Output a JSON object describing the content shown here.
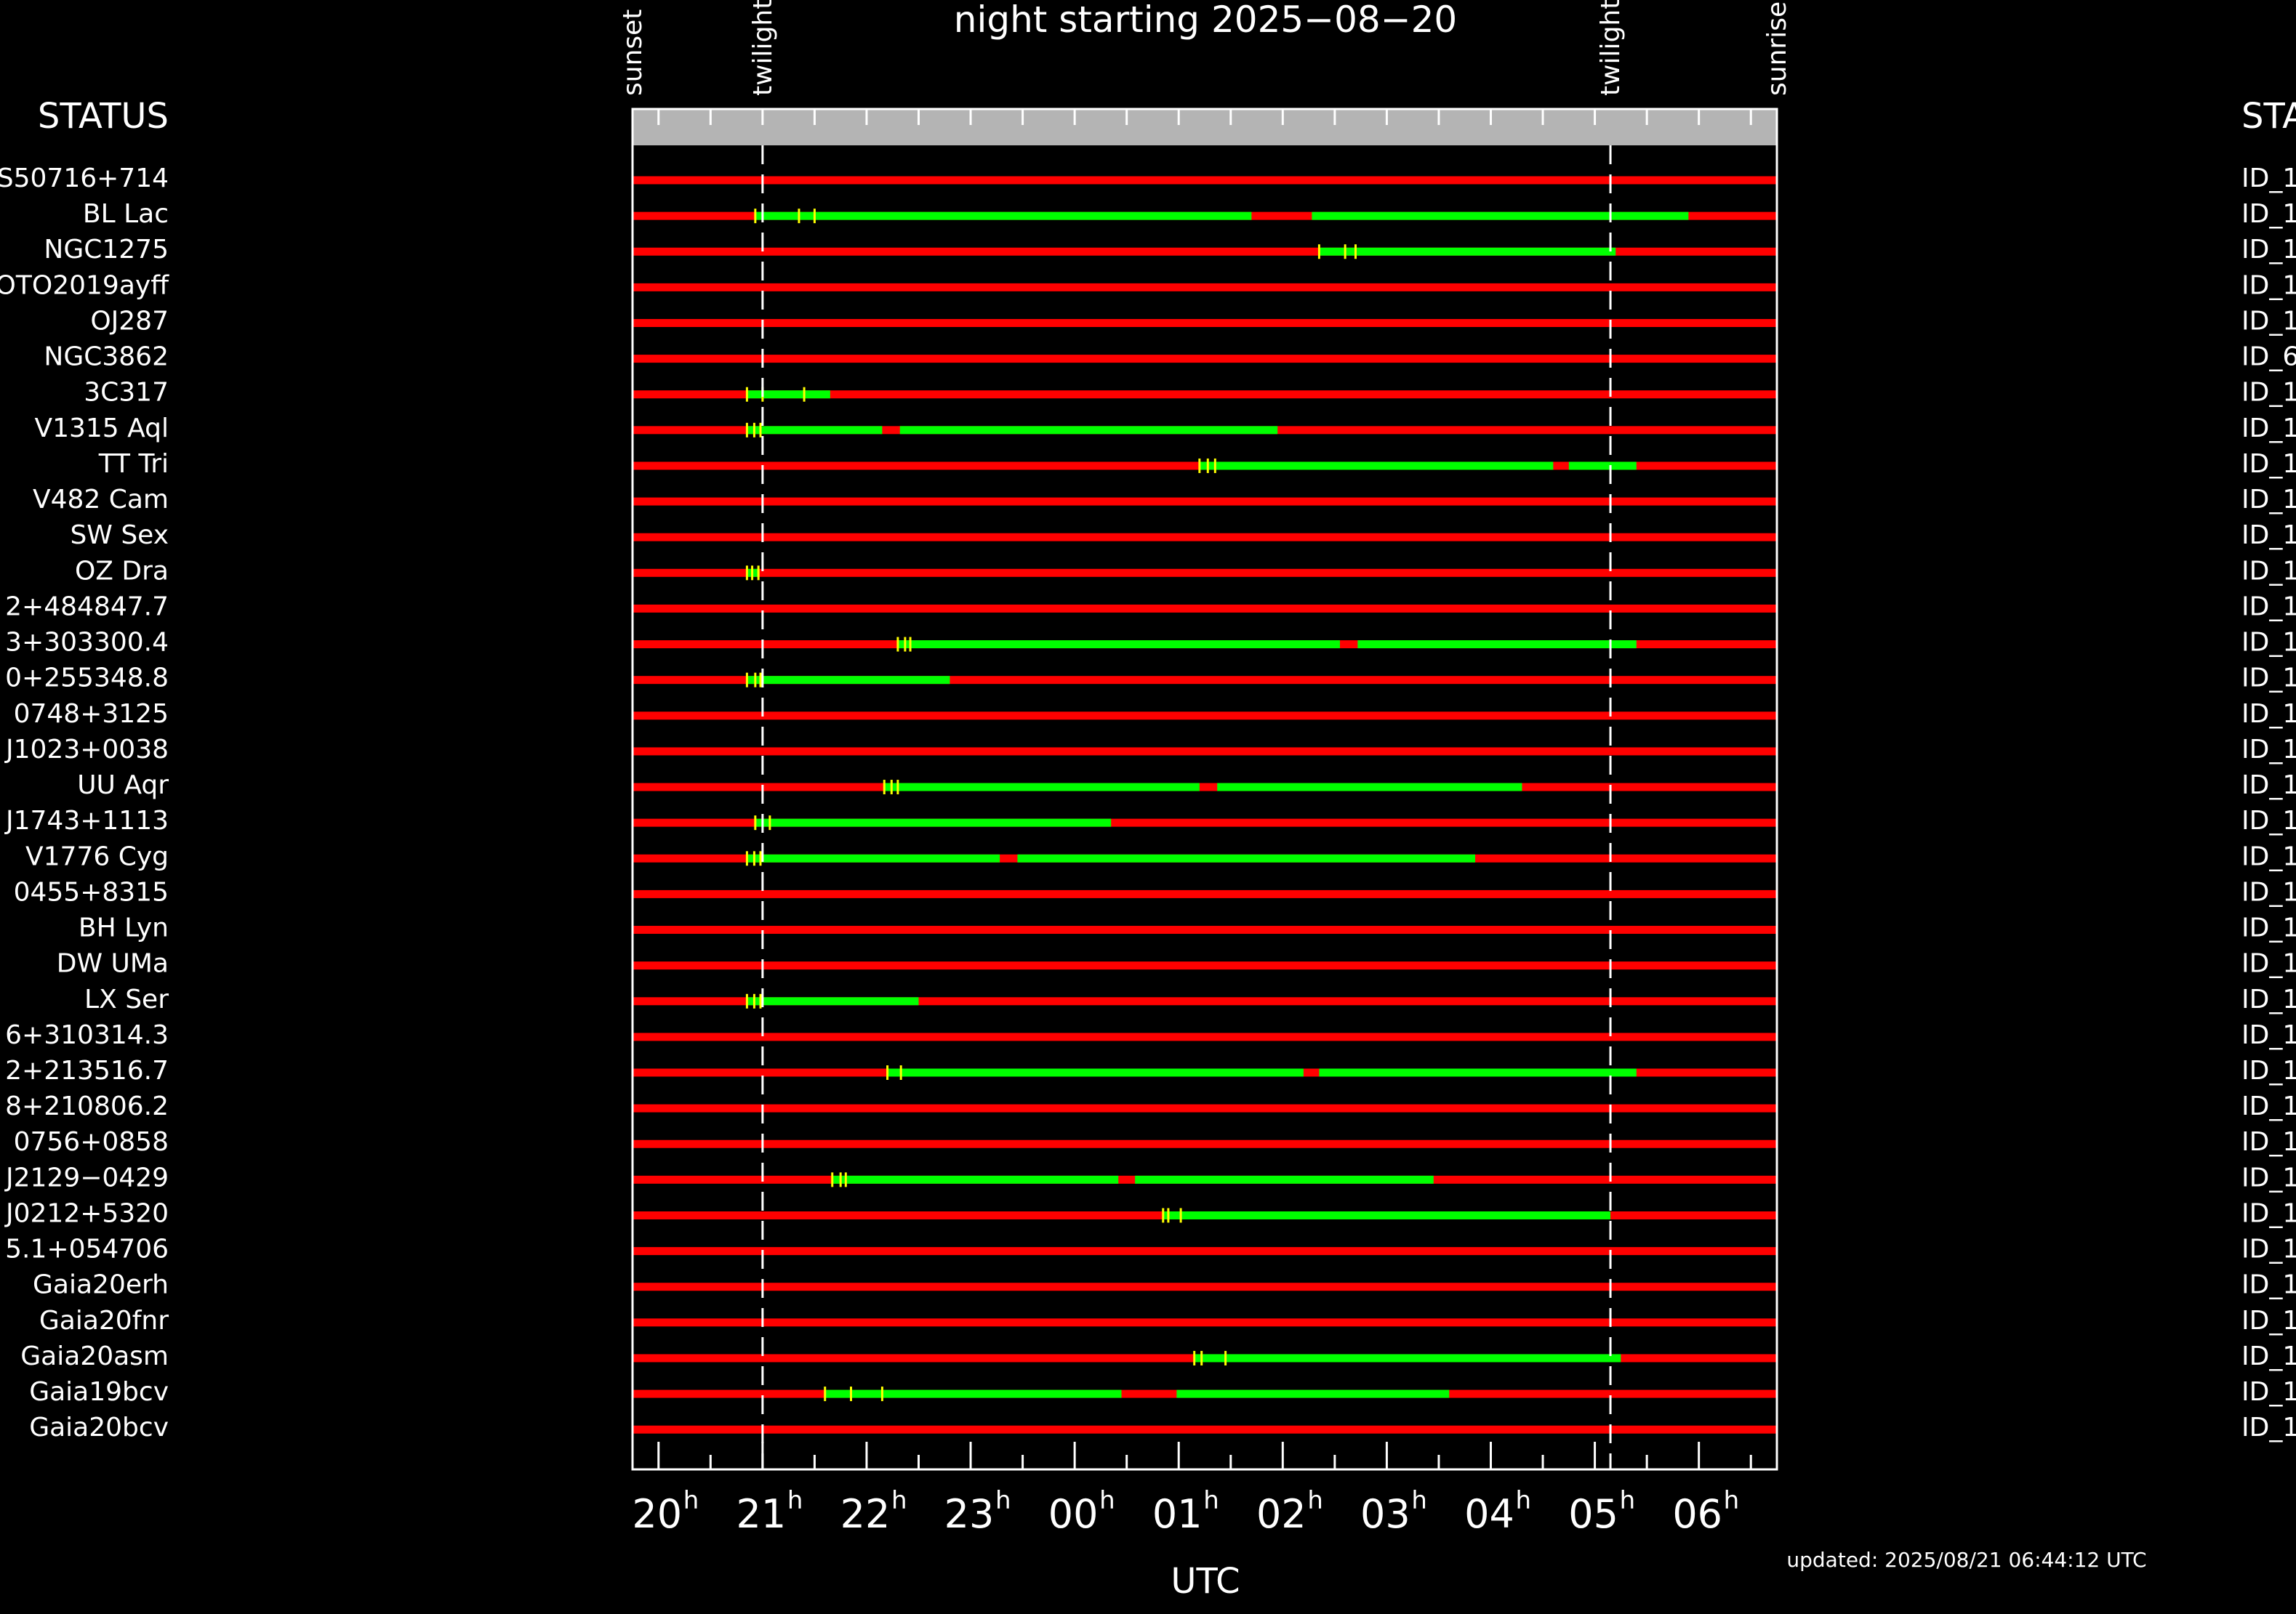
{
  "chart_data": {
    "type": "bar",
    "title": "night starting 2025−08−20",
    "xlabel": "UTC",
    "updated": "updated: 2025/08/21 06:44:12 UTC",
    "status_header_left": "STATUS",
    "status_header_right": "STA",
    "time_range": [
      19.75,
      30.75
    ],
    "x_ticks": [
      {
        "t": 20,
        "hour": "20"
      },
      {
        "t": 21,
        "hour": "21"
      },
      {
        "t": 22,
        "hour": "22"
      },
      {
        "t": 23,
        "hour": "23"
      },
      {
        "t": 24,
        "hour": "00"
      },
      {
        "t": 25,
        "hour": "01"
      },
      {
        "t": 26,
        "hour": "02"
      },
      {
        "t": 27,
        "hour": "03"
      },
      {
        "t": 28,
        "hour": "04"
      },
      {
        "t": 29,
        "hour": "05"
      },
      {
        "t": 30,
        "hour": "06"
      }
    ],
    "hour_suffix": "h",
    "events": [
      {
        "name": "sunset",
        "t": 19.75,
        "dashed": false
      },
      {
        "name": "twilight",
        "t": 21.0,
        "dashed": true
      },
      {
        "name": "twilight",
        "t": 29.15,
        "dashed": true
      },
      {
        "name": "sunrise",
        "t": 30.75,
        "dashed": false
      }
    ],
    "colors": {
      "not_observable": "#ff0000",
      "observable": "#00ff00",
      "marker": "#ffff00",
      "grid": "#ffffff",
      "header_band": "#b4b4b4"
    },
    "targets": [
      {
        "name": "S50716+714",
        "id": "ID_1",
        "green": [],
        "markers": []
      },
      {
        "name": "BL Lac",
        "id": "ID_1",
        "green": [
          [
            20.93,
            25.7
          ],
          [
            26.28,
            29.9
          ]
        ],
        "markers": [
          20.93,
          21.35,
          21.5
        ]
      },
      {
        "name": "NGC1275",
        "id": "ID_1",
        "green": [
          [
            26.35,
            29.2
          ]
        ],
        "markers": [
          26.35,
          26.6,
          26.7
        ]
      },
      {
        "name": "OTO2019ayff",
        "id": "ID_1",
        "green": [],
        "markers": []
      },
      {
        "name": "OJ287",
        "id": "ID_1",
        "green": [],
        "markers": []
      },
      {
        "name": "NGC3862",
        "id": "ID_6",
        "green": [],
        "markers": []
      },
      {
        "name": "3C317",
        "id": "ID_1",
        "green": [
          [
            20.85,
            21.65
          ]
        ],
        "markers": [
          20.85,
          21.0,
          21.4
        ]
      },
      {
        "name": "V1315 Aql",
        "id": "ID_1",
        "green": [
          [
            20.85,
            22.15
          ],
          [
            22.32,
            25.95
          ]
        ],
        "markers": [
          20.85,
          20.92,
          20.98
        ]
      },
      {
        "name": "TT Tri",
        "id": "ID_1",
        "green": [
          [
            25.2,
            28.6
          ],
          [
            28.75,
            29.4
          ]
        ],
        "markers": [
          25.2,
          25.28,
          25.35
        ]
      },
      {
        "name": "V482 Cam",
        "id": "ID_1",
        "green": [],
        "markers": []
      },
      {
        "name": "SW Sex",
        "id": "ID_1",
        "green": [],
        "markers": []
      },
      {
        "name": "OZ Dra",
        "id": "ID_1",
        "green": [
          [
            20.85,
            20.97
          ]
        ],
        "markers": [
          20.85,
          20.9,
          20.96
        ]
      },
      {
        "name": "2+484847.7",
        "id": "ID_1",
        "green": [],
        "markers": []
      },
      {
        "name": "3+303300.4",
        "id": "ID_1",
        "green": [
          [
            22.3,
            26.55
          ],
          [
            26.72,
            29.4
          ]
        ],
        "markers": [
          22.3,
          22.37,
          22.42
        ]
      },
      {
        "name": "0+255348.8",
        "id": "ID_1",
        "green": [
          [
            20.85,
            22.8
          ]
        ],
        "markers": [
          20.85,
          20.93,
          20.98
        ]
      },
      {
        "name": "0748+3125",
        "id": "ID_1",
        "green": [],
        "markers": []
      },
      {
        "name": "J1023+0038",
        "id": "ID_1",
        "green": [],
        "markers": []
      },
      {
        "name": "UU Aqr",
        "id": "ID_1",
        "green": [
          [
            22.17,
            25.2
          ],
          [
            25.37,
            28.3
          ]
        ],
        "markers": [
          22.17,
          22.24,
          22.3
        ]
      },
      {
        "name": "J1743+1113",
        "id": "ID_1",
        "green": [
          [
            20.93,
            24.35
          ]
        ],
        "markers": [
          20.93,
          21.07
        ]
      },
      {
        "name": "V1776 Cyg",
        "id": "ID_1",
        "green": [
          [
            20.85,
            23.28
          ],
          [
            23.45,
            27.85
          ]
        ],
        "markers": [
          20.85,
          20.92,
          20.98
        ]
      },
      {
        "name": "0455+8315",
        "id": "ID_1",
        "green": [],
        "markers": []
      },
      {
        "name": "BH Lyn",
        "id": "ID_1",
        "green": [],
        "markers": []
      },
      {
        "name": "DW UMa",
        "id": "ID_1",
        "green": [],
        "markers": []
      },
      {
        "name": "LX Ser",
        "id": "ID_1",
        "green": [
          [
            20.85,
            22.5
          ]
        ],
        "markers": [
          20.85,
          20.92,
          20.98
        ]
      },
      {
        "name": "6+310314.3",
        "id": "ID_1",
        "green": [],
        "markers": []
      },
      {
        "name": "2+213516.7",
        "id": "ID_1",
        "green": [
          [
            22.2,
            26.2
          ],
          [
            26.35,
            29.4
          ]
        ],
        "markers": [
          22.2,
          22.33
        ]
      },
      {
        "name": "8+210806.2",
        "id": "ID_1",
        "green": [],
        "markers": []
      },
      {
        "name": "0756+0858",
        "id": "ID_1",
        "green": [],
        "markers": []
      },
      {
        "name": "J2129−0429",
        "id": "ID_1",
        "green": [
          [
            21.67,
            24.42
          ],
          [
            24.58,
            27.45
          ]
        ],
        "markers": [
          21.67,
          21.75,
          21.8
        ]
      },
      {
        "name": "J0212+5320",
        "id": "ID_1",
        "green": [
          [
            24.85,
            29.15
          ]
        ],
        "markers": [
          24.85,
          24.9,
          25.02
        ]
      },
      {
        "name": "5.1+054706",
        "id": "ID_1",
        "green": [],
        "markers": []
      },
      {
        "name": "Gaia20erh",
        "id": "ID_1",
        "green": [],
        "markers": []
      },
      {
        "name": "Gaia20fnr",
        "id": "ID_1",
        "green": [],
        "markers": []
      },
      {
        "name": "Gaia20asm",
        "id": "ID_1",
        "green": [
          [
            25.15,
            29.25
          ]
        ],
        "markers": [
          25.15,
          25.22,
          25.45
        ]
      },
      {
        "name": "Gaia19bcv",
        "id": "ID_1",
        "green": [
          [
            21.6,
            24.45
          ],
          [
            24.98,
            27.6
          ]
        ],
        "markers": [
          21.6,
          21.85,
          22.15
        ]
      },
      {
        "name": "Gaia20bcv",
        "id": "ID_1",
        "green": [],
        "markers": []
      }
    ]
  }
}
